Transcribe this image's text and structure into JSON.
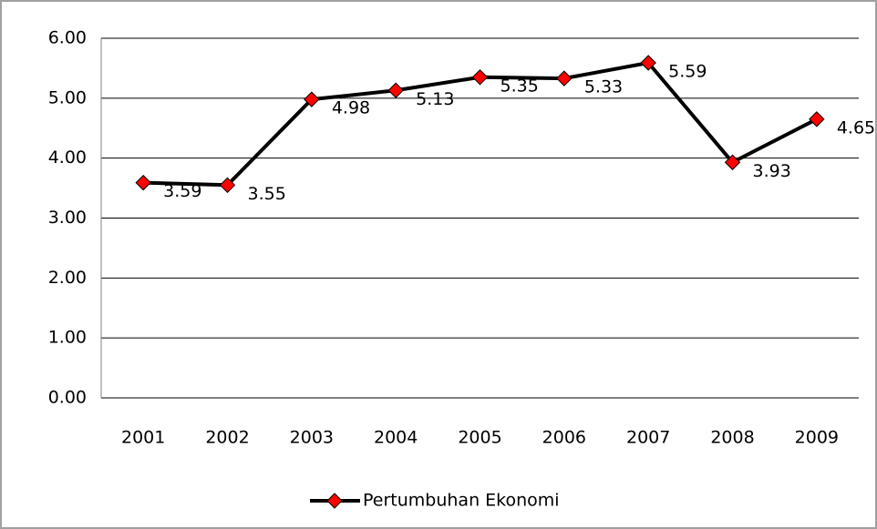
{
  "chart_data": {
    "type": "line",
    "categories": [
      "2001",
      "2002",
      "2003",
      "2004",
      "2005",
      "2006",
      "2007",
      "2008",
      "2009"
    ],
    "series": [
      {
        "name": "Pertumbuhan Ekonomi",
        "color": "#000000",
        "marker_color": "#ff0000",
        "values": [
          3.59,
          3.55,
          4.98,
          5.13,
          5.35,
          5.33,
          5.59,
          3.93,
          4.65
        ]
      }
    ],
    "ylim": [
      0,
      6
    ],
    "yticks": [
      {
        "value": 0,
        "label": "0.00"
      },
      {
        "value": 1,
        "label": "1.00"
      },
      {
        "value": 2,
        "label": "2.00"
      },
      {
        "value": 3,
        "label": "3.00"
      },
      {
        "value": 4,
        "label": "4.00"
      },
      {
        "value": 5,
        "label": "5.00"
      },
      {
        "value": 6,
        "label": "6.00"
      }
    ],
    "grid": true,
    "legend": "bottom",
    "data_labels": true
  }
}
